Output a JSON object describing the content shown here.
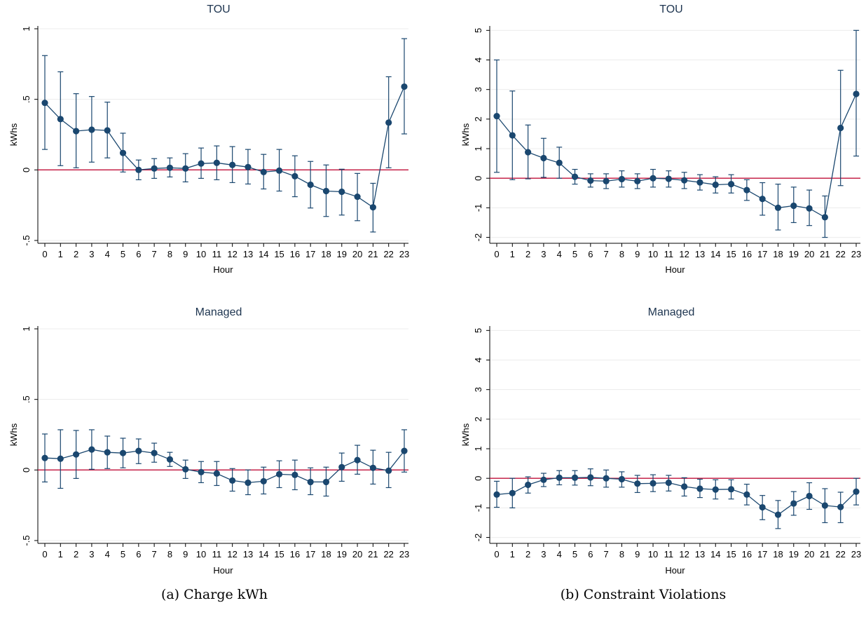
{
  "chart_data": [
    {
      "type": "line",
      "panel": "a-top",
      "title": "TOU",
      "xlabel": "Hour",
      "ylabel": "kWhs",
      "ylim": [
        -0.52,
        1.02
      ],
      "yticks": [
        -0.5,
        0,
        0.5,
        1
      ],
      "ytick_labels": [
        "-.5",
        "0",
        ".5",
        "1"
      ],
      "reference_y": 0,
      "x": [
        0,
        1,
        2,
        3,
        4,
        5,
        6,
        7,
        8,
        9,
        10,
        11,
        12,
        13,
        14,
        15,
        16,
        17,
        18,
        19,
        20,
        21,
        22,
        23
      ],
      "y": [
        0.475,
        0.36,
        0.275,
        0.285,
        0.28,
        0.12,
        0.0,
        0.01,
        0.015,
        0.01,
        0.045,
        0.05,
        0.035,
        0.02,
        -0.015,
        -0.005,
        -0.045,
        -0.105,
        -0.15,
        -0.155,
        -0.19,
        -0.265,
        0.335,
        0.59
      ],
      "lower": [
        0.145,
        0.03,
        0.015,
        0.055,
        0.085,
        -0.015,
        -0.07,
        -0.06,
        -0.05,
        -0.085,
        -0.06,
        -0.07,
        -0.09,
        -0.1,
        -0.135,
        -0.15,
        -0.19,
        -0.27,
        -0.33,
        -0.32,
        -0.36,
        -0.44,
        0.015,
        0.255
      ],
      "upper": [
        0.81,
        0.695,
        0.54,
        0.52,
        0.48,
        0.26,
        0.07,
        0.08,
        0.085,
        0.115,
        0.155,
        0.17,
        0.165,
        0.145,
        0.11,
        0.145,
        0.1,
        0.06,
        0.035,
        0.005,
        -0.025,
        -0.095,
        0.66,
        0.93
      ]
    },
    {
      "type": "line",
      "panel": "a-bottom",
      "title": "Managed",
      "xlabel": "Hour",
      "ylabel": "kWhs",
      "ylim": [
        -0.52,
        1.02
      ],
      "yticks": [
        -0.5,
        0,
        0.5,
        1
      ],
      "ytick_labels": [
        "-.5",
        "0",
        ".5",
        "1"
      ],
      "reference_y": 0,
      "x": [
        0,
        1,
        2,
        3,
        4,
        5,
        6,
        7,
        8,
        9,
        10,
        11,
        12,
        13,
        14,
        15,
        16,
        17,
        18,
        19,
        20,
        21,
        22,
        23
      ],
      "y": [
        0.085,
        0.08,
        0.11,
        0.145,
        0.125,
        0.12,
        0.135,
        0.12,
        0.075,
        0.005,
        -0.015,
        -0.025,
        -0.075,
        -0.09,
        -0.08,
        -0.03,
        -0.035,
        -0.085,
        -0.085,
        0.02,
        0.07,
        0.015,
        -0.005,
        0.135
      ],
      "lower": [
        -0.085,
        -0.13,
        -0.06,
        0.005,
        0.01,
        0.015,
        0.045,
        0.055,
        0.025,
        -0.06,
        -0.09,
        -0.11,
        -0.15,
        -0.175,
        -0.17,
        -0.125,
        -0.14,
        -0.175,
        -0.185,
        -0.08,
        -0.03,
        -0.1,
        -0.125,
        -0.015
      ],
      "upper": [
        0.255,
        0.285,
        0.28,
        0.285,
        0.24,
        0.225,
        0.22,
        0.19,
        0.125,
        0.07,
        0.06,
        0.06,
        0.01,
        0.0,
        0.02,
        0.065,
        0.07,
        0.015,
        0.02,
        0.12,
        0.175,
        0.14,
        0.125,
        0.285
      ]
    },
    {
      "type": "line",
      "panel": "b-top",
      "title": "TOU",
      "xlabel": "Hour",
      "ylabel": "kWhs",
      "ylim": [
        -2.2,
        5.15
      ],
      "yticks": [
        -2,
        -1,
        0,
        1,
        2,
        3,
        4,
        5
      ],
      "ytick_labels": [
        "-2",
        "-1",
        "0",
        "1",
        "2",
        "3",
        "4",
        "5"
      ],
      "reference_y": 0,
      "x": [
        0,
        1,
        2,
        3,
        4,
        5,
        6,
        7,
        8,
        9,
        10,
        11,
        12,
        13,
        14,
        15,
        16,
        17,
        18,
        19,
        20,
        21,
        22,
        23
      ],
      "y": [
        2.1,
        1.45,
        0.88,
        0.68,
        0.52,
        0.05,
        -0.08,
        -0.1,
        -0.03,
        -0.1,
        0.0,
        -0.02,
        -0.07,
        -0.14,
        -0.22,
        -0.2,
        -0.4,
        -0.7,
        -1.0,
        -0.93,
        -1.02,
        -1.32,
        1.7,
        2.85
      ],
      "lower": [
        0.2,
        -0.05,
        -0.02,
        0.03,
        0.0,
        -0.2,
        -0.3,
        -0.35,
        -0.3,
        -0.35,
        -0.3,
        -0.3,
        -0.35,
        -0.4,
        -0.5,
        -0.5,
        -0.75,
        -1.25,
        -1.75,
        -1.5,
        -1.6,
        -2.0,
        -0.25,
        0.75
      ],
      "upper": [
        4.0,
        2.95,
        1.8,
        1.35,
        1.05,
        0.3,
        0.15,
        0.15,
        0.25,
        0.15,
        0.3,
        0.25,
        0.2,
        0.12,
        0.05,
        0.12,
        -0.05,
        -0.15,
        -0.2,
        -0.3,
        -0.4,
        -0.6,
        3.65,
        5.0
      ]
    },
    {
      "type": "line",
      "panel": "b-bottom",
      "title": "Managed",
      "xlabel": "Hour",
      "ylabel": "kWhs",
      "ylim": [
        -2.2,
        5.15
      ],
      "yticks": [
        -2,
        -1,
        0,
        1,
        2,
        3,
        4,
        5
      ],
      "ytick_labels": [
        "-2",
        "-1",
        "0",
        "1",
        "2",
        "3",
        "4",
        "5"
      ],
      "reference_y": 0,
      "x": [
        0,
        1,
        2,
        3,
        4,
        5,
        6,
        7,
        8,
        9,
        10,
        11,
        12,
        13,
        14,
        15,
        16,
        17,
        18,
        19,
        20,
        21,
        22,
        23
      ],
      "y": [
        -0.55,
        -0.5,
        -0.22,
        -0.05,
        0.02,
        0.02,
        0.03,
        0.0,
        -0.03,
        -0.18,
        -0.17,
        -0.15,
        -0.28,
        -0.35,
        -0.38,
        -0.37,
        -0.55,
        -0.98,
        -1.23,
        -0.85,
        -0.6,
        -0.92,
        -0.97,
        -0.45
      ],
      "lower": [
        -0.98,
        -1.0,
        -0.5,
        -0.28,
        -0.22,
        -0.23,
        -0.25,
        -0.3,
        -0.3,
        -0.48,
        -0.45,
        -0.43,
        -0.6,
        -0.65,
        -0.7,
        -0.7,
        -0.9,
        -1.4,
        -1.7,
        -1.25,
        -1.05,
        -1.5,
        -1.5,
        -0.9
      ],
      "upper": [
        -0.1,
        0.0,
        0.05,
        0.17,
        0.26,
        0.26,
        0.32,
        0.28,
        0.22,
        0.1,
        0.12,
        0.1,
        0.02,
        -0.03,
        -0.05,
        -0.05,
        -0.2,
        -0.58,
        -0.75,
        -0.45,
        -0.15,
        -0.35,
        -0.47,
        0.0
      ]
    }
  ],
  "captions": {
    "left": "(a) Charge kWh",
    "right": "(b) Constraint Violations"
  }
}
